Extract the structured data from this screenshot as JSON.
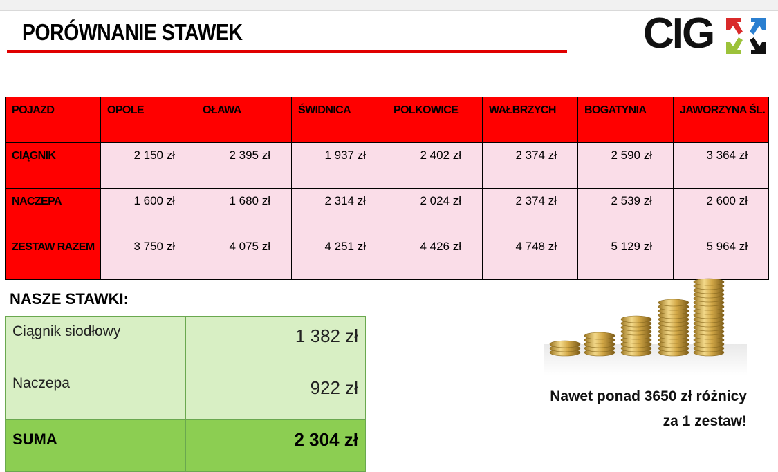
{
  "header": {
    "title": "PORÓWNANIE STAWEK",
    "logo_text": "CIG",
    "accent_color": "#e00000"
  },
  "rates_table": {
    "columns": [
      "POJAZD",
      "OPOLE",
      "OŁAWA",
      "ŚWIDNICA",
      "POLKOWICE",
      "WAŁBRZYCH",
      "BOGATYNIA",
      "JAWORZYNA ŚL."
    ],
    "rows": [
      {
        "label": "CIĄGNIK",
        "values": [
          "2 150 zł",
          "2 395 zł",
          "1 937 zł",
          "2 402 zł",
          "2 374 zł",
          "2 590 zł",
          "3 364 zł"
        ]
      },
      {
        "label": "NACZEPA",
        "values": [
          "1 600 zł",
          "1 680 zł",
          "2 314 zł",
          "2 024 zł",
          "2 374 zł",
          "2 539 zł",
          "2 600 zł"
        ]
      },
      {
        "label": "ZESTAW RAZEM",
        "values": [
          "3 750 zł",
          "4 075 zł",
          "4 251 zł",
          "4 426 zł",
          "4 748 zł",
          "5 129 zł",
          "5 964 zł"
        ]
      }
    ],
    "header_color": "#ff0000",
    "cell_color": "#fadde8"
  },
  "our_rates": {
    "title": "NASZE STAWKI:",
    "rows": [
      {
        "label": "Ciągnik siodłowy",
        "value": "1 382 zł"
      },
      {
        "label": "Naczepa",
        "value": "922 zł"
      }
    ],
    "total": {
      "label": "SUMA",
      "value": "2 304 zł"
    }
  },
  "promo": {
    "image": "coin-stacks-image",
    "line1": "Nawet ponad 3650 zł różnicy",
    "line2": "za 1 zestaw!"
  }
}
